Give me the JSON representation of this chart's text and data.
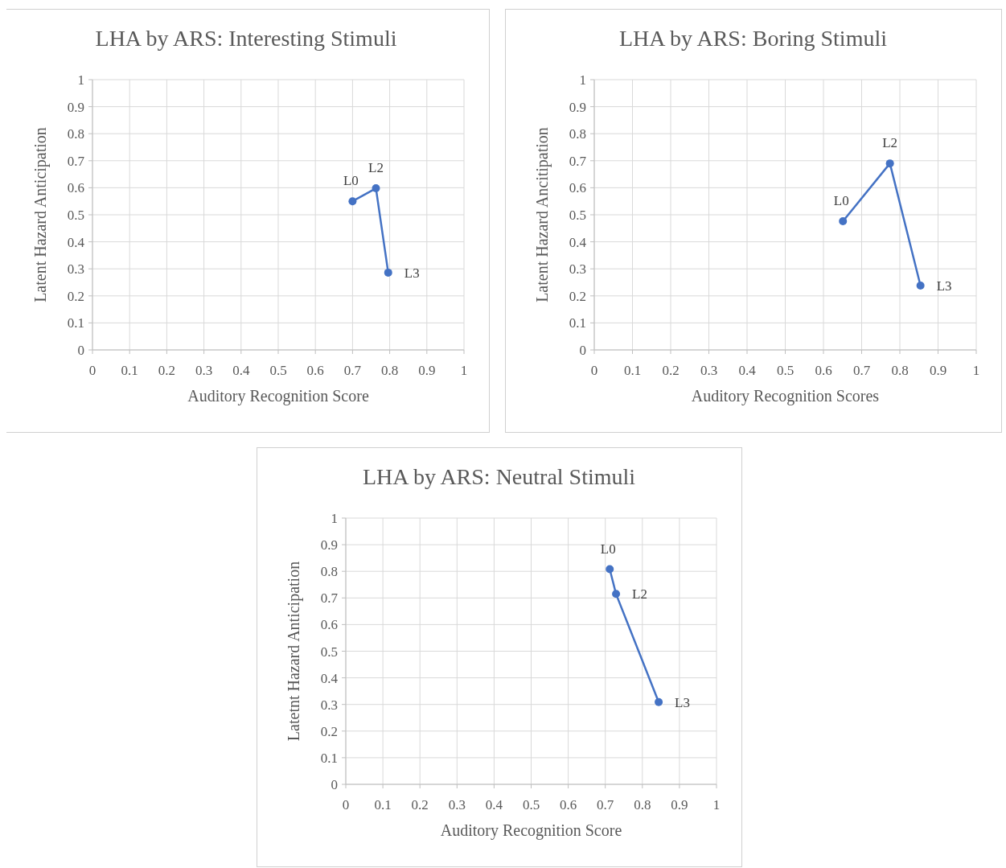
{
  "chart_data": [
    {
      "type": "line",
      "title": "LHA by ARS: Interesting Stimuli",
      "xlabel": "Auditory Recognition Score",
      "ylabel": "Latent Hazard Anticipation",
      "x": [
        0.7,
        0.763,
        0.796
      ],
      "values": [
        0.55,
        0.598,
        0.286
      ],
      "color": "#4472c4",
      "marker": "circle",
      "line_style": "solid",
      "grid": true,
      "xlim": [
        0,
        1
      ],
      "ylim": [
        0,
        1
      ],
      "xticks": [
        0,
        0.1,
        0.2,
        0.3,
        0.4,
        0.5,
        0.6,
        0.7,
        0.8,
        0.9,
        1
      ],
      "yticks": [
        0,
        0.1,
        0.2,
        0.3,
        0.4,
        0.5,
        0.6,
        0.7,
        0.8,
        0.9,
        1
      ],
      "annotations": [
        {
          "text": "L0",
          "x": 0.7,
          "y": 0.55
        },
        {
          "text": "L2",
          "x": 0.763,
          "y": 0.598
        },
        {
          "text": "L3",
          "x": 0.796,
          "y": 0.286
        }
      ]
    },
    {
      "type": "line",
      "title": "LHA by ARS: Boring Stimuli",
      "xlabel": "Auditory Recognition Scores",
      "ylabel": "Latent Hazard Ancitipation",
      "x": [
        0.651,
        0.774,
        0.854
      ],
      "values": [
        0.476,
        0.69,
        0.238
      ],
      "color": "#4472c4",
      "marker": "circle",
      "line_style": "solid",
      "grid": true,
      "xlim": [
        0,
        1
      ],
      "ylim": [
        0,
        1
      ],
      "xticks": [
        0,
        0.1,
        0.2,
        0.3,
        0.4,
        0.5,
        0.6,
        0.7,
        0.8,
        0.9,
        1
      ],
      "yticks": [
        0,
        0.1,
        0.2,
        0.3,
        0.4,
        0.5,
        0.6,
        0.7,
        0.8,
        0.9,
        1
      ],
      "annotations": [
        {
          "text": "L0",
          "x": 0.651,
          "y": 0.476
        },
        {
          "text": "L2",
          "x": 0.774,
          "y": 0.69
        },
        {
          "text": "L3",
          "x": 0.854,
          "y": 0.238
        }
      ]
    },
    {
      "type": "line",
      "title": "LHA by ARS: Neutral Stimuli",
      "xlabel": "Auditory Recognition Score",
      "ylabel": "Latetnt Hazard Anticipation",
      "x": [
        0.712,
        0.729,
        0.844
      ],
      "values": [
        0.808,
        0.715,
        0.309
      ],
      "color": "#4472c4",
      "marker": "circle",
      "line_style": "solid",
      "grid": true,
      "xlim": [
        0,
        1
      ],
      "ylim": [
        0,
        1
      ],
      "xticks": [
        0,
        0.1,
        0.2,
        0.3,
        0.4,
        0.5,
        0.6,
        0.7,
        0.8,
        0.9,
        1
      ],
      "yticks": [
        0,
        0.1,
        0.2,
        0.3,
        0.4,
        0.5,
        0.6,
        0.7,
        0.8,
        0.9,
        1
      ],
      "annotations": [
        {
          "text": "L0",
          "x": 0.712,
          "y": 0.808
        },
        {
          "text": "L2",
          "x": 0.729,
          "y": 0.715
        },
        {
          "text": "L3",
          "x": 0.844,
          "y": 0.309
        }
      ]
    }
  ]
}
